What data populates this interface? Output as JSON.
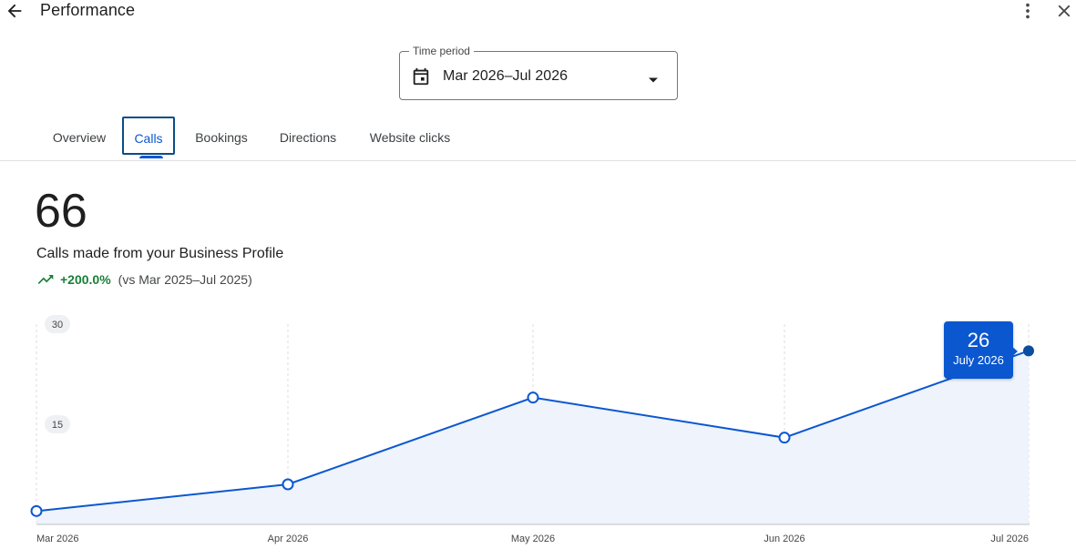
{
  "header": {
    "title": "Performance",
    "back_icon": "arrow-back-icon",
    "more_icon": "more-vert-icon",
    "close_icon": "close-icon"
  },
  "time_period": {
    "label": "Time period",
    "value": "Mar 2026–Jul 2026",
    "icon": "calendar-icon"
  },
  "tabs": [
    {
      "label": "Overview",
      "selected": false
    },
    {
      "label": "Calls",
      "selected": true
    },
    {
      "label": "Bookings",
      "selected": false
    },
    {
      "label": "Directions",
      "selected": false
    },
    {
      "label": "Website clicks",
      "selected": false
    }
  ],
  "metric": {
    "value": "66",
    "label": "Calls made from your Business Profile",
    "change": "+200.0%",
    "comparison": "(vs Mar 2025–Jul 2025)",
    "trend_icon": "trending-up-icon"
  },
  "tooltip": {
    "value": "26",
    "label": "July 2026"
  },
  "colors": {
    "accent": "#0b57d0",
    "positive": "#188038",
    "area_fill": "#eef3fc"
  },
  "chart_data": {
    "type": "area",
    "categories": [
      "Mar 2026",
      "Apr 2026",
      "May 2026",
      "Jun 2026",
      "Jul 2026"
    ],
    "values": [
      2,
      6,
      19,
      13,
      26
    ],
    "y_ticks": [
      "30",
      "15"
    ],
    "ylim": [
      0,
      30
    ],
    "grid": "vertical-dashed",
    "highlighted_index": 4
  }
}
